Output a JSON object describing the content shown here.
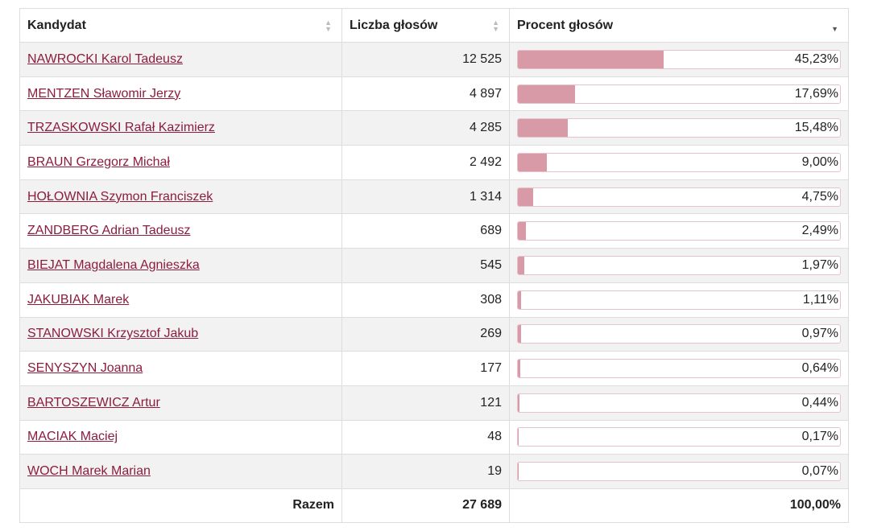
{
  "header": {
    "col_candidate": "Kandydat",
    "col_votes": "Liczba głosów",
    "col_percent": "Procent głosów"
  },
  "rows": [
    {
      "name": "NAWROCKI Karol Tadeusz",
      "votes": "12 525",
      "percent_label": "45,23%",
      "percent": 45.23
    },
    {
      "name": "MENTZEN Sławomir Jerzy",
      "votes": "4 897",
      "percent_label": "17,69%",
      "percent": 17.69
    },
    {
      "name": "TRZASKOWSKI Rafał Kazimierz",
      "votes": "4 285",
      "percent_label": "15,48%",
      "percent": 15.48
    },
    {
      "name": "BRAUN Grzegorz Michał",
      "votes": "2 492",
      "percent_label": "9,00%",
      "percent": 9.0
    },
    {
      "name": "HOŁOWNIA Szymon Franciszek",
      "votes": "1 314",
      "percent_label": "4,75%",
      "percent": 4.75
    },
    {
      "name": "ZANDBERG Adrian Tadeusz",
      "votes": "689",
      "percent_label": "2,49%",
      "percent": 2.49
    },
    {
      "name": "BIEJAT Magdalena Agnieszka",
      "votes": "545",
      "percent_label": "1,97%",
      "percent": 1.97
    },
    {
      "name": "JAKUBIAK Marek",
      "votes": "308",
      "percent_label": "1,11%",
      "percent": 1.11
    },
    {
      "name": "STANOWSKI Krzysztof Jakub",
      "votes": "269",
      "percent_label": "0,97%",
      "percent": 0.97
    },
    {
      "name": "SENYSZYN Joanna",
      "votes": "177",
      "percent_label": "0,64%",
      "percent": 0.64
    },
    {
      "name": "BARTOSZEWICZ Artur",
      "votes": "121",
      "percent_label": "0,44%",
      "percent": 0.44
    },
    {
      "name": "MACIAK Maciej",
      "votes": "48",
      "percent_label": "0,17%",
      "percent": 0.17
    },
    {
      "name": "WOCH Marek Marian",
      "votes": "19",
      "percent_label": "0,07%",
      "percent": 0.07
    }
  ],
  "footer": {
    "label": "Razem",
    "votes": "27 689",
    "percent": "100,00%"
  },
  "sort": {
    "column": "percent",
    "direction": "desc"
  },
  "colors": {
    "link": "#8c1d3e",
    "bar_fill": "#d99aa8",
    "bar_border": "#e6c3cb",
    "stripe": "#f2f2f2"
  }
}
